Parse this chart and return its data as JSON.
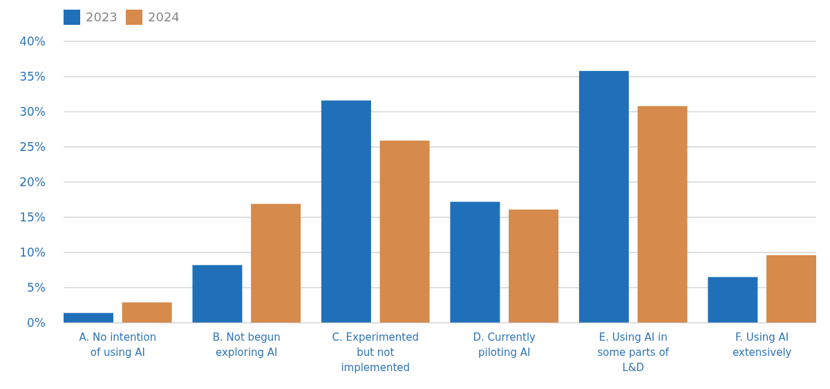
{
  "chart_data": {
    "type": "bar",
    "categories": [
      "A. No intention of using AI",
      "B. Not begun exploring AI",
      "C. Experimented but not implemented",
      "D. Currently piloting AI",
      "E. Using AI in some parts of L&D",
      "F. Using AI extensively"
    ],
    "series": [
      {
        "name": "2023",
        "color": "#1f70b8",
        "values": [
          1.4,
          8.2,
          31.6,
          17.2,
          35.8,
          6.5
        ]
      },
      {
        "name": "2024",
        "color": "#d68a4b",
        "values": [
          2.9,
          16.9,
          25.9,
          16.1,
          30.8,
          9.6
        ]
      }
    ],
    "ylim": [
      0,
      40
    ],
    "yticks": [
      {
        "value": 0,
        "label": "0%"
      },
      {
        "value": 5,
        "label": "5%"
      },
      {
        "value": 10,
        "label": "10%"
      },
      {
        "value": 15,
        "label": "15%"
      },
      {
        "value": 20,
        "label": "20%"
      },
      {
        "value": 25,
        "label": "25%"
      },
      {
        "value": 30,
        "label": "30%"
      },
      {
        "value": 35,
        "label": "35%"
      },
      {
        "value": 40,
        "label": "40%"
      }
    ],
    "grid": "y",
    "legend": "top left"
  }
}
